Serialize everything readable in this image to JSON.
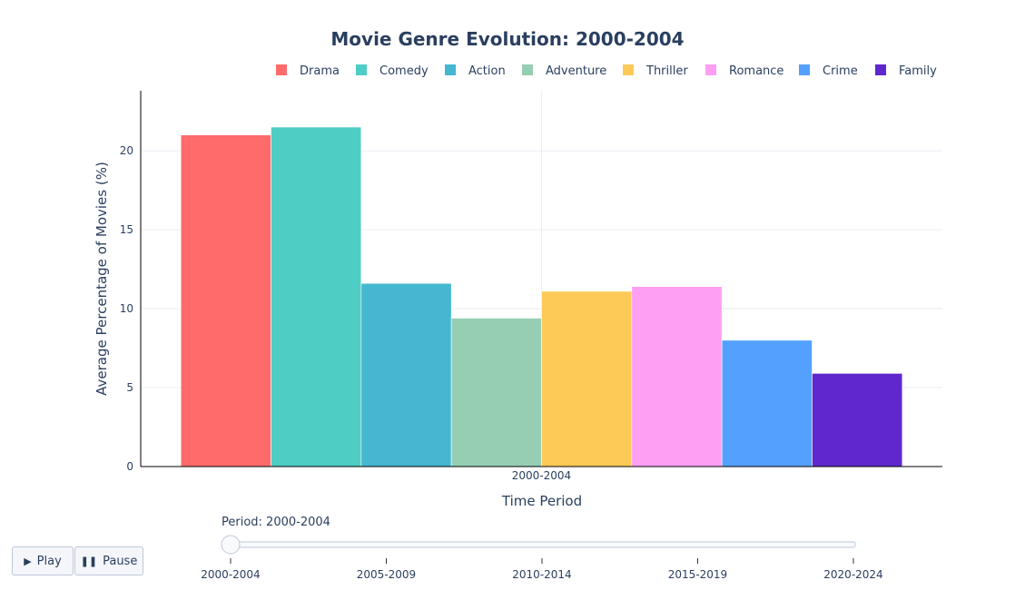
{
  "chart_data": {
    "type": "bar",
    "title": "Movie Genre Evolution: 2000-2004",
    "xlabel": "Time Period",
    "ylabel": "Average Percentage of Movies (%)",
    "categories": [
      "2000-2004"
    ],
    "ylim": [
      0,
      23.8
    ],
    "yticks": [
      0,
      5,
      10,
      15,
      20
    ],
    "grid": true,
    "legend_position": "top-right",
    "series": [
      {
        "name": "Drama",
        "values": [
          21.0
        ],
        "color": "#ff6b6b"
      },
      {
        "name": "Comedy",
        "values": [
          21.5
        ],
        "color": "#4ecdc4"
      },
      {
        "name": "Action",
        "values": [
          11.6
        ],
        "color": "#45b7d1"
      },
      {
        "name": "Adventure",
        "values": [
          9.4
        ],
        "color": "#96ceb4"
      },
      {
        "name": "Thriller",
        "values": [
          11.1
        ],
        "color": "#feca57"
      },
      {
        "name": "Romance",
        "values": [
          11.4
        ],
        "color": "#ff9ff3"
      },
      {
        "name": "Crime",
        "values": [
          8.0
        ],
        "color": "#54a0ff"
      },
      {
        "name": "Family",
        "values": [
          5.9
        ],
        "color": "#5f27cd"
      }
    ]
  },
  "controls": {
    "play_label": "Play",
    "pause_label": "Pause",
    "play_icon": "play-icon",
    "pause_icon": "pause-icon"
  },
  "slider": {
    "current_label": "Period: 2000-2004",
    "current_index": 0,
    "steps": [
      "2000-2004",
      "2005-2009",
      "2010-2014",
      "2015-2019",
      "2020-2024"
    ]
  }
}
